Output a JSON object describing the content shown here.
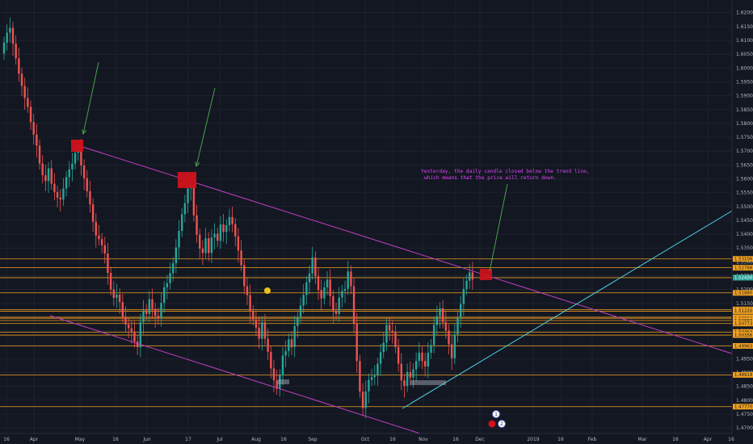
{
  "chart_data": {
    "type": "candlestick",
    "title": "",
    "colors": {
      "background": "#131722",
      "grid": "#242836",
      "up": "#26a69a",
      "down": "#ef5350",
      "trendline": "#c040c0",
      "support_line": "#4dd0e1",
      "level": "#f0a020",
      "arrow": "#4caf50",
      "marker": "#d0121b",
      "note": "#e040fb"
    },
    "y_axis": {
      "min": 1.468,
      "max": 1.624,
      "ticks": [
        "1.62000",
        "1.61500",
        "1.61000",
        "1.60500",
        "1.60000",
        "1.59500",
        "1.59000",
        "1.58500",
        "1.58000",
        "1.57500",
        "1.57000",
        "1.56500",
        "1.56000",
        "1.55500",
        "1.55000",
        "1.54500",
        "1.54000",
        "1.53500",
        "1.53000",
        "1.52500",
        "1.52000",
        "1.51500",
        "1.51000",
        "1.50500",
        "1.50000",
        "1.49500",
        "1.49000",
        "1.48500",
        "1.48000",
        "1.47500",
        "1.47000"
      ]
    },
    "x_axis": {
      "ticks": [
        "16",
        "Apr",
        "May",
        "16",
        "Jun",
        "17",
        "Jul",
        "Aug",
        "16",
        "Sep",
        "Oct",
        "16",
        "Nov",
        "16",
        "Dec",
        "2019",
        "16",
        "Feb",
        "Mar",
        "16",
        "Apr",
        "16"
      ]
    },
    "candles_close": [
      1.6092,
      1.6128,
      1.6145,
      1.6088,
      1.6035,
      1.598,
      1.5935,
      1.5892,
      1.586,
      1.5805,
      1.576,
      1.572,
      1.5655,
      1.5613,
      1.5592,
      1.5638,
      1.5582,
      1.5552,
      1.5532,
      1.5525,
      1.5565,
      1.5606,
      1.5634,
      1.5655,
      1.5694,
      1.5705,
      1.5648,
      1.5602,
      1.5555,
      1.5508,
      1.5445,
      1.5395,
      1.5382,
      1.536,
      1.533,
      1.526,
      1.52,
      1.517,
      1.5182,
      1.5155,
      1.5102,
      1.5074,
      1.506,
      1.5048,
      1.5012,
      1.4992,
      1.5082,
      1.5125,
      1.5112,
      1.5165,
      1.513,
      1.5105,
      1.5095,
      1.5152,
      1.5208,
      1.5223,
      1.5259,
      1.5295,
      1.5352,
      1.5412,
      1.5472,
      1.5512,
      1.5565,
      1.5582,
      1.5468,
      1.5398,
      1.5348,
      1.5332,
      1.5385,
      1.5332,
      1.5388,
      1.5402,
      1.5376,
      1.5435,
      1.5408,
      1.5432,
      1.5462,
      1.5436,
      1.5392,
      1.5341,
      1.5288,
      1.5212,
      1.518,
      1.5122,
      1.5092,
      1.5062,
      1.5022,
      1.5082,
      1.5022,
      1.4975,
      1.4915,
      1.4872,
      1.4842,
      1.489,
      1.4962,
      1.4978,
      1.502,
      1.4992,
      1.5068,
      1.5102,
      1.5142,
      1.5181,
      1.5226,
      1.5258,
      1.5316,
      1.5248,
      1.5198,
      1.5168,
      1.5208,
      1.5236,
      1.5176,
      1.5122,
      1.5112,
      1.5171,
      1.5195,
      1.5202,
      1.5265,
      1.5212,
      1.5078,
      1.4942,
      1.4831,
      1.4772,
      1.4832,
      1.4874,
      1.4884,
      1.4889,
      1.4932,
      1.4974,
      1.5008,
      1.5072,
      1.5052,
      1.5048,
      1.4992,
      1.4932,
      1.4872,
      1.4852,
      1.4902,
      1.4882,
      1.4912,
      1.4942,
      1.4972,
      1.4942,
      1.4922,
      1.4972,
      1.4999,
      1.5072,
      1.5104,
      1.5132,
      1.5082,
      1.5052,
      1.5002,
      1.4952,
      1.5038,
      1.5098,
      1.5148,
      1.5202,
      1.5232,
      1.5262,
      1.5236
    ],
    "levels": [
      "1.53106",
      "1.52788",
      "1.52430",
      "1.51880",
      "1.51280",
      "1.51220",
      "1.51000",
      "1.50962",
      "1.50883",
      "1.50773",
      "1.50464",
      "1.50356",
      "1.49963",
      "1.48918",
      "1.47770"
    ],
    "current_price": "1.52430",
    "annotation": [
      "Yesterday, the daily candle closed below the trend line,",
      "which means that the price will return down."
    ],
    "event_badges": [
      "1",
      "2"
    ]
  }
}
